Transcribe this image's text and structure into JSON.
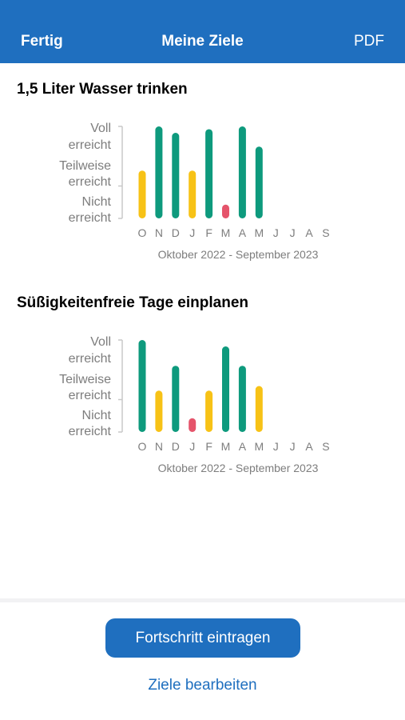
{
  "header": {
    "left_label": "Fertig",
    "title": "Meine Ziele",
    "right_label": "PDF"
  },
  "y_levels": [
    "Voll",
    "erreicht",
    "Teilweise",
    "erreicht",
    "Nicht",
    "erreicht"
  ],
  "colors": {
    "full": "#0e9a7d",
    "partial": "#f7c216",
    "none": "#e5546b",
    "accent": "#1f6fbf"
  },
  "goals": [
    {
      "title": "1,5 Liter Wasser trinken",
      "chart_data": {
        "type": "bar",
        "categories": [
          "O",
          "N",
          "D",
          "J",
          "F",
          "M",
          "A",
          "M",
          "J",
          "J",
          "A",
          "S"
        ],
        "values": [
          0.52,
          1.0,
          0.93,
          0.52,
          0.97,
          0.15,
          1.0,
          0.78,
          null,
          null,
          null,
          null
        ],
        "status": [
          "partial",
          "full",
          "full",
          "partial",
          "full",
          "none",
          "full",
          "full",
          null,
          null,
          null,
          null
        ],
        "xlabel": "Oktober 2022 - September 2023",
        "ylim": [
          0,
          1
        ]
      }
    },
    {
      "title": "Süßigkeitenfreie Tage einplanen",
      "chart_data": {
        "type": "bar",
        "categories": [
          "O",
          "N",
          "D",
          "J",
          "F",
          "M",
          "A",
          "M",
          "J",
          "J",
          "A",
          "S"
        ],
        "values": [
          1.0,
          0.45,
          0.72,
          0.15,
          0.45,
          0.93,
          0.72,
          0.5,
          null,
          null,
          null,
          null
        ],
        "status": [
          "full",
          "partial",
          "full",
          "none",
          "partial",
          "full",
          "full",
          "partial",
          null,
          null,
          null,
          null
        ],
        "xlabel": "Oktober 2022 - September 2023",
        "ylim": [
          0,
          1
        ]
      }
    }
  ],
  "actions": {
    "primary": "Fortschritt eintragen",
    "secondary": "Ziele bearbeiten"
  }
}
